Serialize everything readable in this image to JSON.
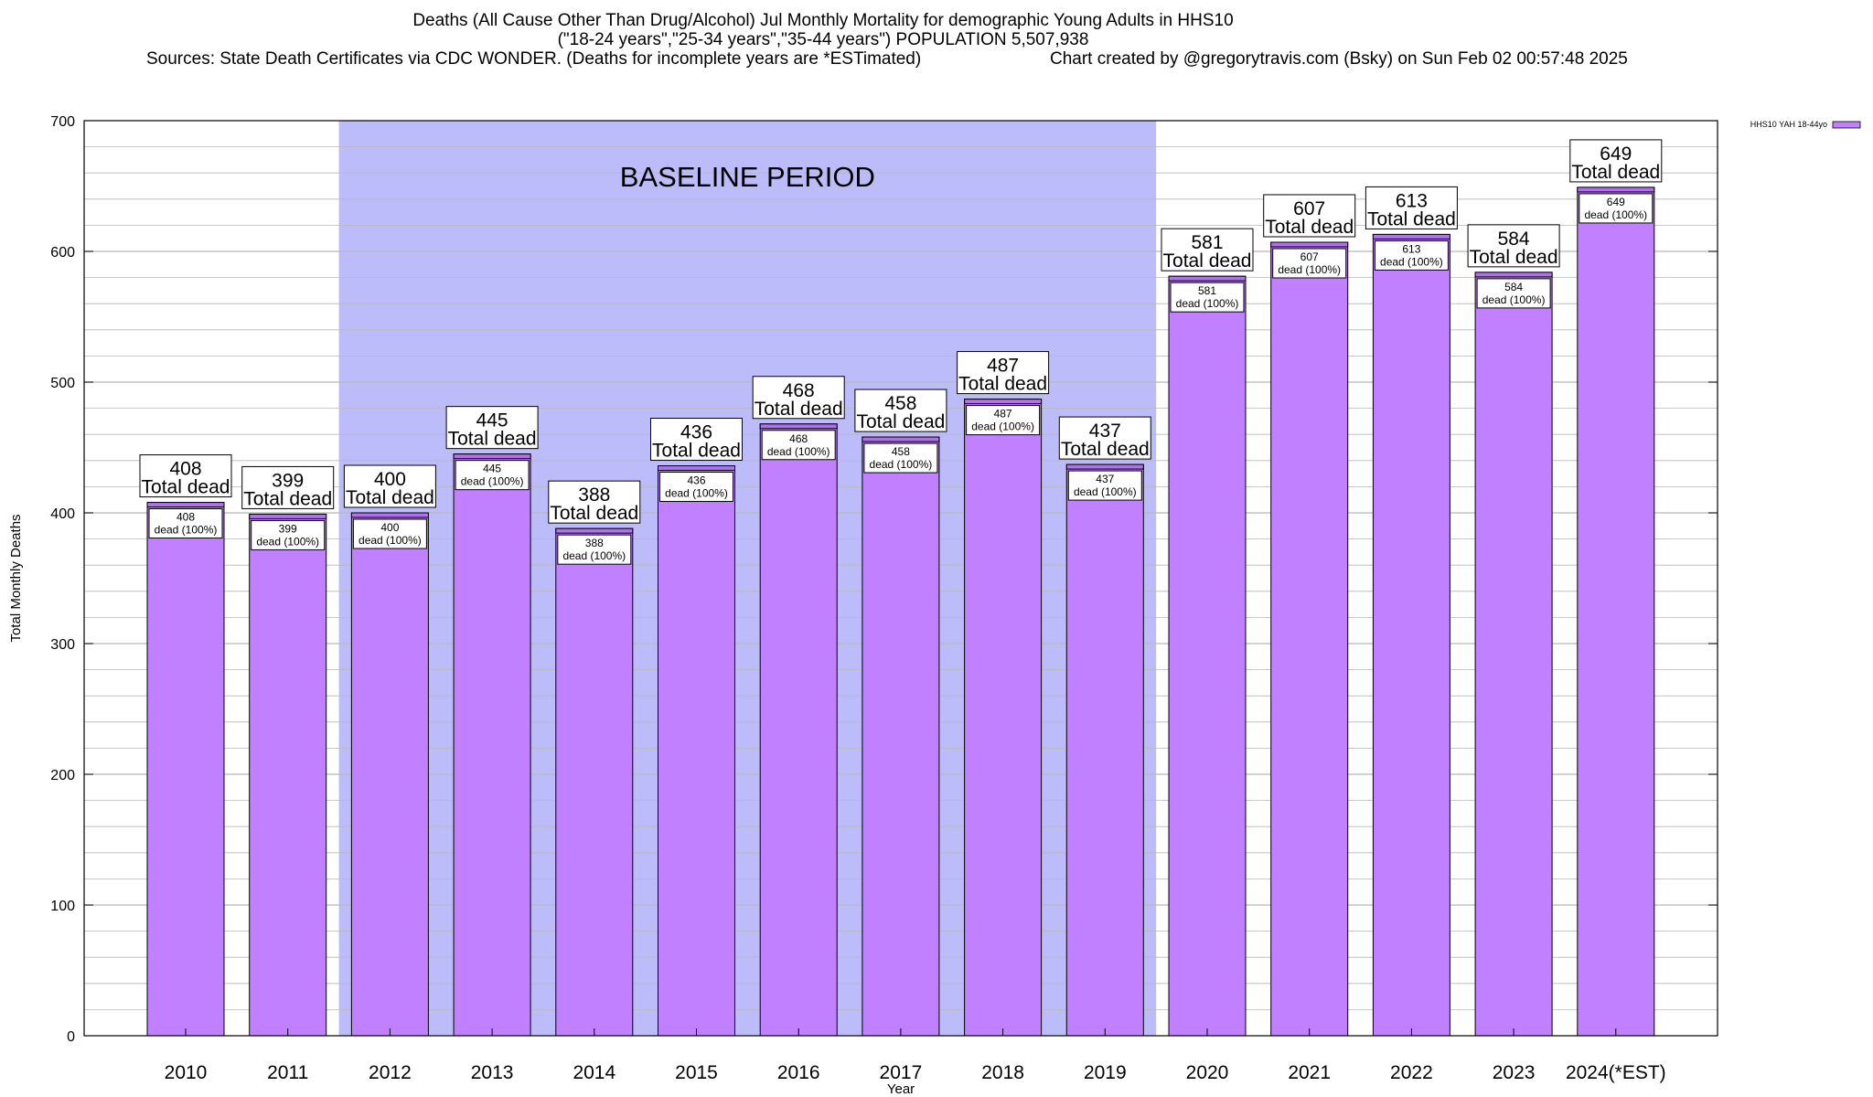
{
  "chart_data": {
    "type": "bar",
    "title": "Deaths (All Cause Other Than Drug/Alcohol) Jul Monthly Mortality for demographic Young Adults in HHS10",
    "subtitle": "(\"18-24 years\",\"25-34 years\",\"35-44 years\") POPULATION 5,507,938",
    "sources": "Sources: State Death Certificates via CDC WONDER. (Deaths for incomplete years are *ESTimated)",
    "credit": "Chart created by @gregorytravis.com (Bsky) on Sun Feb 02 00:57:48 2025",
    "xlabel": "Year",
    "ylabel": "Total Monthly Deaths",
    "ylim": [
      0,
      700
    ],
    "yticks": [
      "0",
      "100",
      "200",
      "300",
      "400",
      "500",
      "600",
      "700"
    ],
    "categories": [
      "2010",
      "2011",
      "2012",
      "2013",
      "2014",
      "2015",
      "2016",
      "2017",
      "2018",
      "2019",
      "2020",
      "2021",
      "2022",
      "2023",
      "2024(*EST)"
    ],
    "series": [
      {
        "name": "HHS10 YAH 18-44yo",
        "values": [
          408,
          399,
          400,
          445,
          388,
          436,
          468,
          458,
          487,
          437,
          581,
          607,
          613,
          584,
          649
        ]
      }
    ],
    "top_label_text": "Total dead",
    "inner_label_text": "dead (100%)",
    "baseline_period": {
      "label": "BASELINE PERIOD",
      "from": "2012",
      "to": "2019"
    },
    "grid": true,
    "legend": "top-right",
    "colors": {
      "bar": "#c080ff",
      "bar_cap": "#b070f0",
      "baseline_shade": "#bcbcfa",
      "grid": "#b8b8b8"
    }
  }
}
